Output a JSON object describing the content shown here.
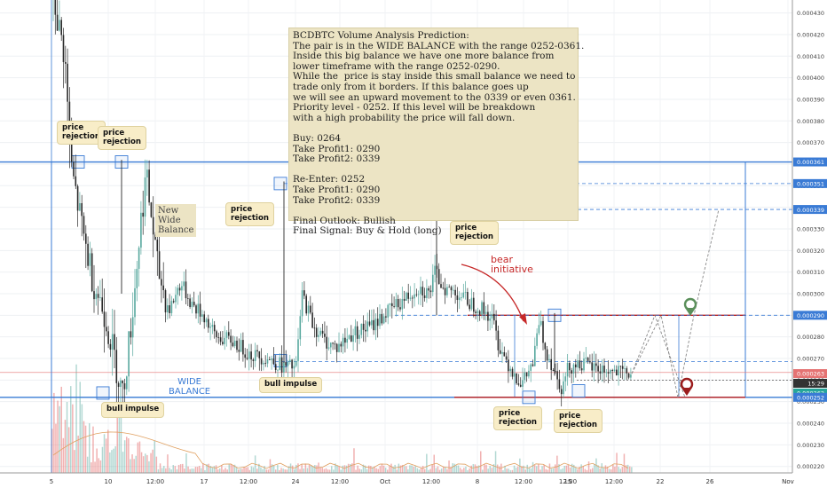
{
  "colors": {
    "bull": "#57a89e",
    "bear": "#2a2a2a",
    "balance_line": "#3a7bd5",
    "small_balance_line": "#b71c1c",
    "annotation_bg": "#ece4c4",
    "wide_balance_text": "#3a7bd5",
    "bear_text": "#c62828",
    "price_tag": "#e57373",
    "current_tag": "#26a69a",
    "support_tag": "#2e7d32"
  },
  "chart_data": {
    "type": "candlestick",
    "pair": "BCDBTC",
    "x_tick_labels": [
      "5",
      "10",
      "12:00",
      "17",
      "12:00",
      "24",
      "12:00",
      "Oct",
      "12:00",
      "8",
      "12:00",
      "12:00",
      "15",
      "12:00",
      "22",
      "26",
      "Nov"
    ],
    "y_tick_labels": [
      "0.000430",
      "0.000420",
      "0.000410",
      "0.000400",
      "0.000390",
      "0.000380",
      "0.000370",
      "0.000360",
      "0.000350",
      "0.000340",
      "0.000330",
      "0.000320",
      "0.000310",
      "0.000300",
      "0.000290",
      "0.000280",
      "0.000270",
      "0.000260",
      "0.000250",
      "0.000240",
      "0.000230",
      "0.000220"
    ],
    "ylim": [
      0.000217,
      0.000436
    ],
    "price_tags": [
      {
        "label": "0.000361",
        "value": 0.000361,
        "kind": "blue"
      },
      {
        "label": "0.000351",
        "value": 0.000351,
        "kind": "blue"
      },
      {
        "label": "0.000339",
        "value": 0.000339,
        "kind": "blue"
      },
      {
        "label": "0.000290",
        "value": 0.00029,
        "kind": "blue"
      },
      {
        "label": "0.000263",
        "value": 0.000263,
        "kind": "red"
      },
      {
        "label": "15:29",
        "value": 0.0002585,
        "kind": "dark"
      },
      {
        "label": "0.000262",
        "value": 0.000254,
        "kind": "green"
      },
      {
        "label": "0.000252",
        "value": 0.000252,
        "kind": "blue"
      }
    ],
    "wide_balance": {
      "high": 0.000361,
      "low": 0.000252
    },
    "small_balance": {
      "high": 0.00029,
      "low": 0.000252
    },
    "price_path": [
      [
        0.0,
        0.000436
      ],
      [
        0.02,
        0.00041
      ],
      [
        0.03,
        0.00036
      ],
      [
        0.05,
        0.00033
      ],
      [
        0.07,
        0.000305
      ],
      [
        0.09,
        0.00029
      ],
      [
        0.11,
        0.000265
      ],
      [
        0.12,
        0.000253
      ],
      [
        0.13,
        0.000275
      ],
      [
        0.14,
        0.0003
      ],
      [
        0.15,
        0.00033
      ],
      [
        0.16,
        0.000355
      ],
      [
        0.17,
        0.000335
      ],
      [
        0.18,
        0.000312
      ],
      [
        0.2,
        0.000292
      ],
      [
        0.22,
        0.000305
      ],
      [
        0.24,
        0.000295
      ],
      [
        0.26,
        0.00029
      ],
      [
        0.28,
        0.00028
      ],
      [
        0.31,
        0.000278
      ],
      [
        0.34,
        0.000272
      ],
      [
        0.37,
        0.00027
      ],
      [
        0.4,
        0.000266
      ],
      [
        0.42,
        0.000266
      ],
      [
        0.43,
        0.0003
      ],
      [
        0.45,
        0.000285
      ],
      [
        0.47,
        0.000278
      ],
      [
        0.49,
        0.000275
      ],
      [
        0.52,
        0.000282
      ],
      [
        0.55,
        0.000285
      ],
      [
        0.58,
        0.000292
      ],
      [
        0.61,
        0.000298
      ],
      [
        0.63,
        0.000303
      ],
      [
        0.65,
        0.0003
      ],
      [
        0.66,
        0.00031
      ],
      [
        0.67,
        0.000305
      ],
      [
        0.68,
        0.000302
      ],
      [
        0.7,
        0.0003
      ],
      [
        0.72,
        0.000296
      ],
      [
        0.74,
        0.000293
      ],
      [
        0.76,
        0.000288
      ],
      [
        0.77,
        0.000276
      ],
      [
        0.79,
        0.000266
      ],
      [
        0.81,
        0.000258
      ],
      [
        0.83,
        0.000268
      ],
      [
        0.84,
        0.000288
      ],
      [
        0.85,
        0.000275
      ],
      [
        0.87,
        0.000262
      ],
      [
        0.88,
        0.000256
      ],
      [
        0.89,
        0.000266
      ],
      [
        0.91,
        0.000268
      ],
      [
        0.93,
        0.000266
      ],
      [
        0.96,
        0.000264
      ],
      [
        0.98,
        0.000263
      ],
      [
        1.0,
        0.000263
      ]
    ],
    "projection": [
      [
        0.000263,
        0.00029,
        0.000252,
        0.00029,
        0.000339
      ]
    ]
  },
  "annotation_box": {
    "lines": [
      "BCDBTC Volume Analysis Prediction:",
      "The pair is in the WIDE BALANCE with the range 0252-0361.",
      "Inside this big balance we have one more balance from",
      "lower timeframe with the range 0252-0290.",
      "While the  price is stay inside this small balance we need to",
      "trade only from it borders. If this balance goes up",
      "we will see an upward movement to the 0339 or even 0361.",
      "Priority level - 0252. If this level will be breakdown",
      "with a high probability the price will fall down.",
      "",
      "Buy: 0264",
      "Take Profit1: 0290",
      "Take Profit2: 0339",
      "",
      "Re-Enter: 0252",
      "Take Profit1: 0290",
      "Take Profit2: 0339",
      "",
      "Final Outlook: Bullish",
      "Final Signal: Buy & Hold (long)"
    ]
  },
  "labels": {
    "price_rejection": "price\nrejection",
    "bull_impulse": "bull impulse",
    "new_wide_balance": "New\nWide\nBalance",
    "wide_balance": "WIDE\nBALANCE",
    "bear_initiative": "bear\ninitiative"
  }
}
